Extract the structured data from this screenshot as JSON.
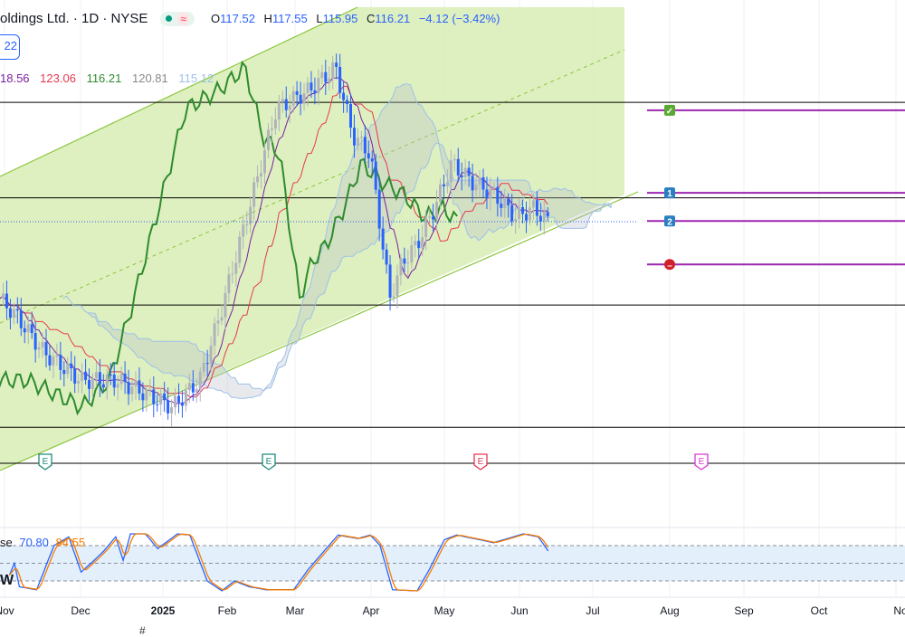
{
  "header": {
    "title": "oldings Ltd. · 1D · NYSE",
    "status_icons": [
      "market-open-dot",
      "wave-icon"
    ],
    "ohlc": {
      "o_label": "O",
      "o": "117.52",
      "h_label": "H",
      "h": "117.55",
      "l_label": "L",
      "l": "115.95",
      "c_label": "C",
      "c": "116.21",
      "change": "−4.12 (−3.42%)"
    }
  },
  "badge": "22",
  "indicator_legend": {
    "values": [
      "18.56",
      "123.06",
      "116.21",
      "120.81",
      "115.12"
    ],
    "colors": [
      "#7b1fa2",
      "#e53950",
      "#2e8b2e",
      "#888888",
      "#9ec1ea"
    ]
  },
  "stoch_legend": {
    "label": "se",
    "k": "70.80",
    "d": "84.55"
  },
  "w_label": "W",
  "x_axis": [
    "Nov",
    "Dec",
    "2025",
    "Feb",
    "Mar",
    "Apr",
    "May",
    "Jun",
    "Jul",
    "Aug",
    "Sep",
    "Oct",
    "No"
  ],
  "earnings": [
    {
      "label": "E",
      "color": "#1e8a7a"
    },
    {
      "label": "E",
      "color": "#1e8a7a"
    },
    {
      "label": "E",
      "color": "#e53950"
    },
    {
      "label": "E",
      "color": "#d83ad8"
    }
  ],
  "targets": [
    {
      "icon": "check-icon",
      "label": "✓",
      "color": "#5aa832",
      "price": 131.6
    },
    {
      "icon": "target-1-icon",
      "label": "1",
      "color": "#2a7fc1",
      "price": 120.2
    },
    {
      "icon": "target-2-icon",
      "label": "2",
      "color": "#2a7fc1",
      "price": 116.3
    },
    {
      "icon": "stop-icon",
      "label": "–",
      "color": "#d0202a",
      "price": 110.3
    }
  ],
  "bottom_icon": "#",
  "colors": {
    "channel": "#d8edb4",
    "candle": "#2962ff",
    "lagging": "#2e8b2e",
    "base": "#e53950",
    "conv": "#7b1fa2",
    "target_line": "#9c27b0",
    "stoch_k": "#2962ff",
    "stoch_d": "#f57c00"
  },
  "chart_data": {
    "type": "candlestick",
    "last_close": 116.21,
    "horizontal_levels": [
      132.7,
      119.5,
      104.7,
      87.8
    ],
    "close_keypoints": [
      [
        -2,
        105.6
      ],
      [
        5,
        103.1
      ],
      [
        16,
        98.1
      ],
      [
        31,
        94.3
      ],
      [
        46,
        94.3
      ],
      [
        68,
        90.6
      ],
      [
        79,
        94.3
      ],
      [
        88,
        104.3
      ],
      [
        97,
        115.6
      ],
      [
        104,
        124.3
      ],
      [
        110,
        131.8
      ],
      [
        123,
        134.3
      ],
      [
        134,
        137.5
      ],
      [
        141,
        128.1
      ],
      [
        148,
        125.6
      ],
      [
        156,
        105.6
      ],
      [
        161,
        110.6
      ],
      [
        167,
        113.1
      ],
      [
        174,
        118.1
      ],
      [
        181,
        124.3
      ],
      [
        189,
        121.8
      ],
      [
        198,
        120.0
      ],
      [
        207,
        116.8
      ],
      [
        214,
        118.1
      ],
      [
        220,
        116.2
      ]
    ],
    "stochastic": {
      "levels": [
        80,
        50,
        20
      ],
      "k_keypoints": [
        [
          2,
          30
        ],
        [
          4,
          50
        ],
        [
          6,
          10
        ],
        [
          13,
          5
        ],
        [
          20,
          80
        ],
        [
          26,
          95
        ],
        [
          31,
          35
        ],
        [
          35,
          50
        ],
        [
          40,
          70
        ],
        [
          45,
          95
        ],
        [
          48,
          55
        ],
        [
          51,
          100
        ],
        [
          57,
          100
        ],
        [
          62,
          75
        ],
        [
          70,
          100
        ],
        [
          75,
          98
        ],
        [
          82,
          20
        ],
        [
          88,
          3
        ],
        [
          93,
          20
        ],
        [
          99,
          10
        ],
        [
          106,
          5
        ],
        [
          117,
          5
        ],
        [
          123,
          40
        ],
        [
          135,
          98
        ],
        [
          143,
          92
        ],
        [
          148,
          98
        ],
        [
          152,
          80
        ],
        [
          157,
          5
        ],
        [
          167,
          3
        ],
        [
          172,
          40
        ],
        [
          178,
          90
        ],
        [
          183,
          98
        ],
        [
          198,
          85
        ],
        [
          210,
          100
        ],
        [
          216,
          95
        ],
        [
          220,
          71
        ]
      ]
    }
  }
}
